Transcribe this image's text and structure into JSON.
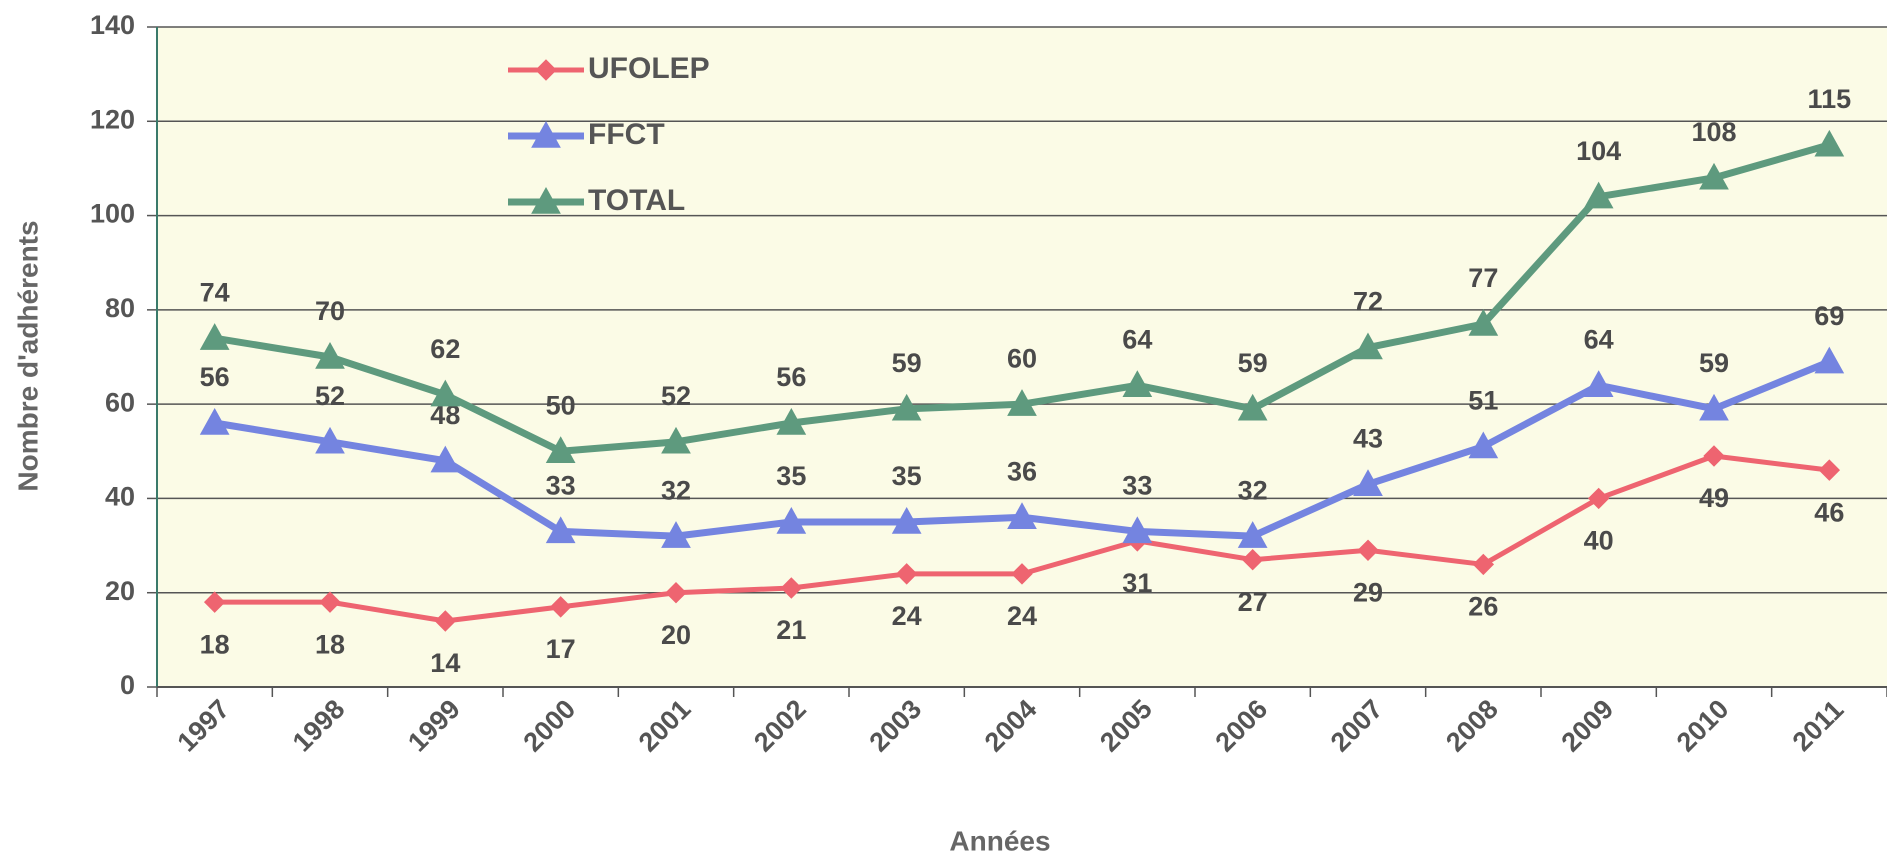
{
  "chart_data": {
    "type": "line",
    "x_label": "Années",
    "y_label": "Nombre d'adhérents",
    "categories": [
      "1997",
      "1998",
      "1999",
      "2000",
      "2001",
      "2002",
      "2003",
      "2004",
      "2005",
      "2006",
      "2007",
      "2008",
      "2009",
      "2010",
      "2011"
    ],
    "series": [
      {
        "name": "UFOLEP",
        "color": "#ee6470",
        "marker": "diamond",
        "values": [
          18,
          18,
          14,
          17,
          20,
          21,
          24,
          24,
          31,
          27,
          29,
          26,
          40,
          49,
          46
        ]
      },
      {
        "name": "FFCT",
        "color": "#7484e0",
        "marker": "triangle",
        "values": [
          56,
          52,
          48,
          33,
          32,
          35,
          35,
          36,
          33,
          32,
          43,
          51,
          64,
          59,
          69
        ]
      },
      {
        "name": "TOTAL",
        "color": "#5e9a7e",
        "marker": "triangle",
        "values": [
          74,
          70,
          62,
          50,
          52,
          56,
          59,
          60,
          64,
          59,
          72,
          77,
          104,
          108,
          115
        ]
      }
    ],
    "ylim": [
      0,
      140
    ],
    "yticks": [
      0,
      20,
      40,
      60,
      80,
      100,
      120,
      140
    ],
    "grid": true,
    "legend": "upper left"
  }
}
